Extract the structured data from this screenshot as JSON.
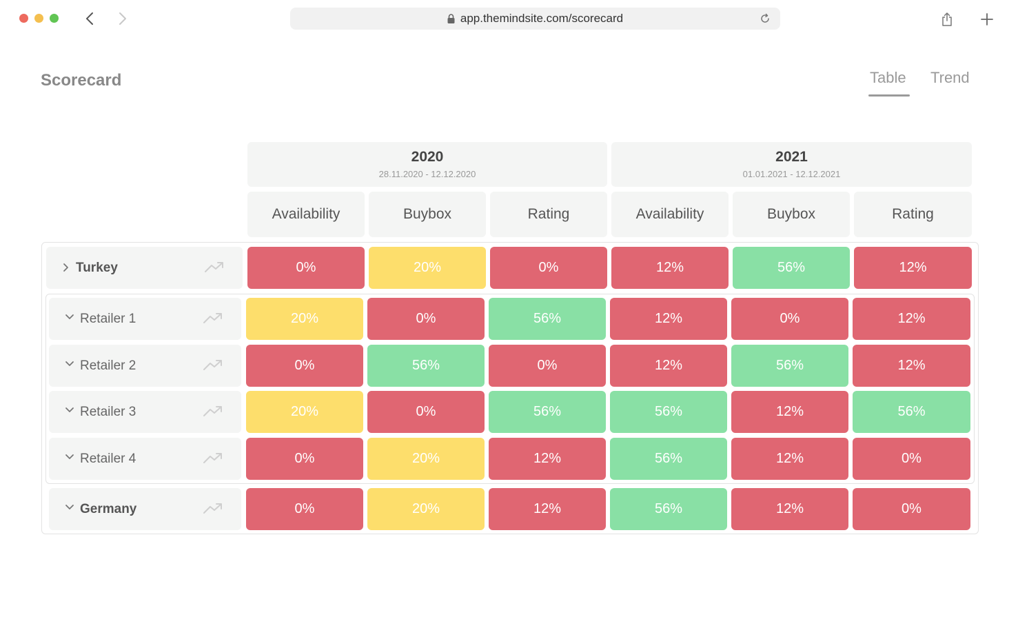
{
  "browser": {
    "url": "app.themindsite.com/scorecard"
  },
  "page": {
    "title": "Scorecard",
    "tabs": [
      {
        "label": "Table",
        "active": true
      },
      {
        "label": "Trend",
        "active": false
      }
    ]
  },
  "colors": {
    "red": "#e06672",
    "yellow": "#fdde6c",
    "green": "#89e0a5"
  },
  "years": [
    {
      "year": "2020",
      "range": "28.11.2020 - 12.12.2020"
    },
    {
      "year": "2021",
      "range": "01.01.2021 - 12.12.2021"
    }
  ],
  "metrics": [
    "Availability",
    "Buybox",
    "Rating",
    "Availability",
    "Buybox",
    "Rating"
  ],
  "rows": [
    {
      "label": "Turkey",
      "bold": true,
      "expanded": false,
      "cells": [
        {
          "v": "0%",
          "c": "red"
        },
        {
          "v": "20%",
          "c": "yellow"
        },
        {
          "v": "0%",
          "c": "red"
        },
        {
          "v": "12%",
          "c": "red"
        },
        {
          "v": "56%",
          "c": "green"
        },
        {
          "v": "12%",
          "c": "red"
        }
      ]
    },
    {
      "label": "Retailer 1",
      "bold": false,
      "expanded": true,
      "cells": [
        {
          "v": "20%",
          "c": "yellow"
        },
        {
          "v": "0%",
          "c": "red"
        },
        {
          "v": "56%",
          "c": "green"
        },
        {
          "v": "12%",
          "c": "red"
        },
        {
          "v": "0%",
          "c": "red"
        },
        {
          "v": "12%",
          "c": "red"
        }
      ]
    },
    {
      "label": "Retailer 2",
      "bold": false,
      "expanded": true,
      "cells": [
        {
          "v": "0%",
          "c": "red"
        },
        {
          "v": "56%",
          "c": "green"
        },
        {
          "v": "0%",
          "c": "red"
        },
        {
          "v": "12%",
          "c": "red"
        },
        {
          "v": "56%",
          "c": "green"
        },
        {
          "v": "12%",
          "c": "red"
        }
      ]
    },
    {
      "label": "Retailer 3",
      "bold": false,
      "expanded": true,
      "cells": [
        {
          "v": "20%",
          "c": "yellow"
        },
        {
          "v": "0%",
          "c": "red"
        },
        {
          "v": "56%",
          "c": "green"
        },
        {
          "v": "56%",
          "c": "green"
        },
        {
          "v": "12%",
          "c": "red"
        },
        {
          "v": "56%",
          "c": "green"
        }
      ]
    },
    {
      "label": "Retailer 4",
      "bold": false,
      "expanded": true,
      "cells": [
        {
          "v": "0%",
          "c": "red"
        },
        {
          "v": "20%",
          "c": "yellow"
        },
        {
          "v": "12%",
          "c": "red"
        },
        {
          "v": "56%",
          "c": "green"
        },
        {
          "v": "12%",
          "c": "red"
        },
        {
          "v": "0%",
          "c": "red"
        }
      ]
    },
    {
      "label": "Germany",
      "bold": true,
      "expanded": true,
      "cells": [
        {
          "v": "0%",
          "c": "red"
        },
        {
          "v": "20%",
          "c": "yellow"
        },
        {
          "v": "12%",
          "c": "red"
        },
        {
          "v": "56%",
          "c": "green"
        },
        {
          "v": "12%",
          "c": "red"
        },
        {
          "v": "0%",
          "c": "red"
        }
      ]
    }
  ]
}
